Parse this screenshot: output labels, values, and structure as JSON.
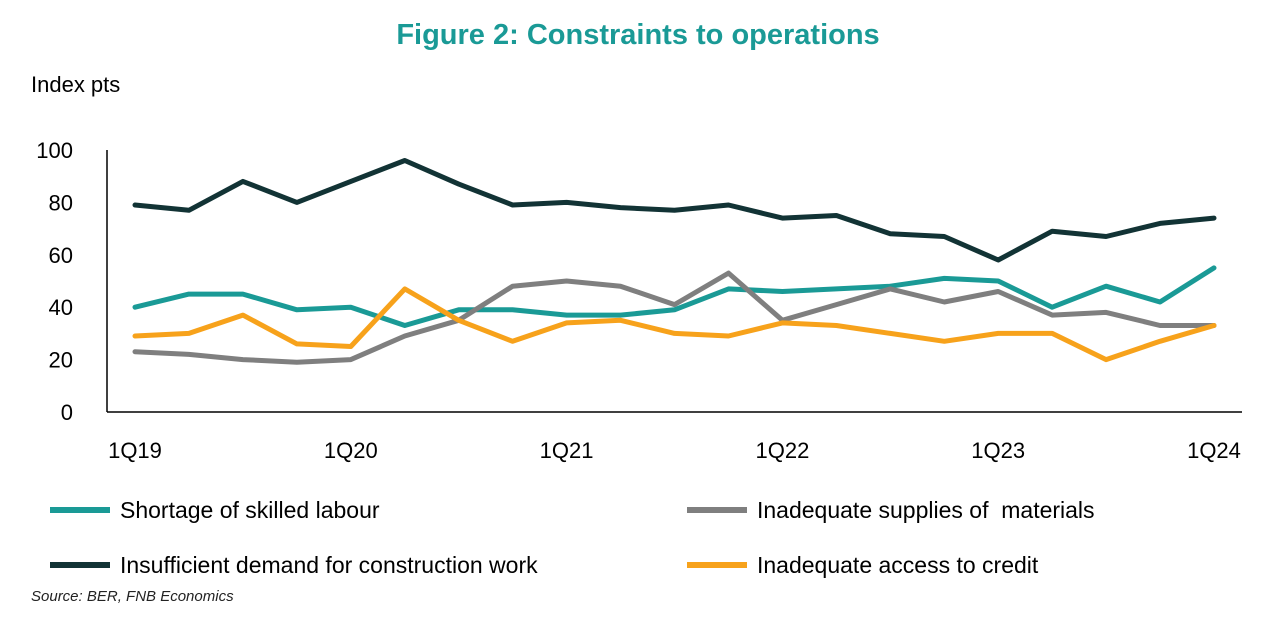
{
  "chart_data": {
    "type": "line",
    "title": "Figure 2: Constraints to operations",
    "ylabel": "Index pts",
    "xlabel": "",
    "ylim": [
      0,
      100
    ],
    "yticks": [
      "0",
      "20",
      "40",
      "60",
      "80",
      "100"
    ],
    "x": [
      "1Q19",
      "2Q19",
      "3Q19",
      "4Q19",
      "1Q20",
      "2Q20",
      "3Q20",
      "4Q20",
      "1Q21",
      "2Q21",
      "3Q21",
      "4Q21",
      "1Q22",
      "2Q22",
      "3Q22",
      "4Q22",
      "1Q23",
      "2Q23",
      "3Q23",
      "4Q23",
      "1Q24"
    ],
    "xtick_labels": [
      "1Q19",
      "1Q20",
      "1Q21",
      "1Q22",
      "1Q23",
      "1Q24"
    ],
    "xtick_indices": [
      0,
      4,
      8,
      12,
      16,
      20
    ],
    "series": [
      {
        "name": "Shortage of skilled labour",
        "color": "#1a9a96",
        "values": [
          40,
          45,
          45,
          39,
          40,
          33,
          39,
          39,
          37,
          37,
          39,
          47,
          46,
          47,
          48,
          51,
          50,
          40,
          48,
          42,
          55
        ]
      },
      {
        "name": "Inadequate supplies of  materials",
        "color": "#7f7f7f",
        "values": [
          23,
          22,
          20,
          19,
          20,
          29,
          35,
          48,
          50,
          48,
          41,
          53,
          35,
          41,
          47,
          42,
          46,
          37,
          38,
          33,
          33
        ]
      },
      {
        "name": "Insufficient demand for construction work",
        "color": "#123335",
        "values": [
          79,
          77,
          88,
          80,
          88,
          96,
          87,
          79,
          80,
          78,
          77,
          79,
          74,
          75,
          68,
          67,
          58,
          69,
          67,
          72,
          74
        ]
      },
      {
        "name": "Inadequate access to credit",
        "color": "#f7a21b",
        "values": [
          29,
          30,
          37,
          26,
          25,
          47,
          35,
          27,
          34,
          35,
          30,
          29,
          34,
          33,
          30,
          27,
          30,
          30,
          20,
          27,
          33
        ]
      }
    ],
    "legend_position": "bottom",
    "grid": false
  },
  "source": "Source: BER, FNB Economics"
}
